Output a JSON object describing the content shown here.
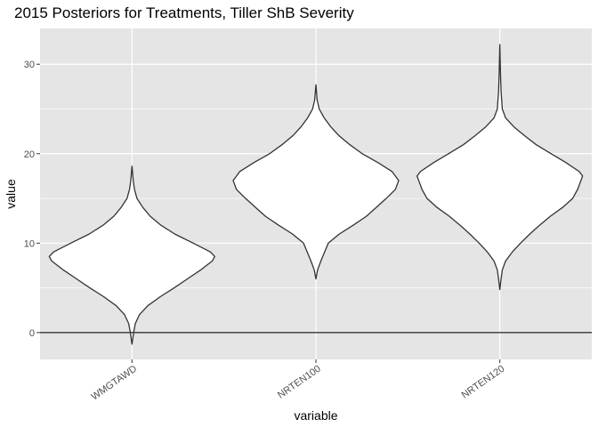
{
  "chart_data": {
    "type": "violin",
    "title": "2015 Posteriors for Treatments, Tiller ShB Severity",
    "xlabel": "variable",
    "ylabel": "value",
    "categories": [
      "WMGTAWD",
      "NRTEN100",
      "NRTEN120"
    ],
    "ylim": [
      -3,
      34
    ],
    "yticks": [
      0,
      10,
      20,
      30
    ],
    "reference_line": 0,
    "grid": true,
    "colors": {
      "panel_bg": "#e5e5e5",
      "grid": "#ffffff",
      "violin_fill": "#ffffff",
      "violin_stroke": "#333333",
      "reference_line": "#333333"
    },
    "series": [
      {
        "category": "WMGTAWD",
        "summary": {
          "min": -1.3,
          "max": 18.6,
          "mode": 8.5
        },
        "density": [
          [
            -1.3,
            0.0
          ],
          [
            0.0,
            0.02
          ],
          [
            1.0,
            0.04
          ],
          [
            2.0,
            0.09
          ],
          [
            3.0,
            0.19
          ],
          [
            4.0,
            0.34
          ],
          [
            5.0,
            0.51
          ],
          [
            6.0,
            0.67
          ],
          [
            7.0,
            0.83
          ],
          [
            8.0,
            0.97
          ],
          [
            8.5,
            1.0
          ],
          [
            9.0,
            0.95
          ],
          [
            10.0,
            0.74
          ],
          [
            11.0,
            0.52
          ],
          [
            12.0,
            0.35
          ],
          [
            13.0,
            0.22
          ],
          [
            14.0,
            0.13
          ],
          [
            15.0,
            0.06
          ],
          [
            16.0,
            0.03
          ],
          [
            17.0,
            0.015
          ],
          [
            18.6,
            0.0
          ]
        ]
      },
      {
        "category": "NRTEN100",
        "summary": {
          "min": 6.0,
          "max": 27.7,
          "mode": 17.0
        },
        "density": [
          [
            6.0,
            0.0
          ],
          [
            7.0,
            0.02
          ],
          [
            8.0,
            0.06
          ],
          [
            10.0,
            0.15
          ],
          [
            11.0,
            0.28
          ],
          [
            12.0,
            0.45
          ],
          [
            13.0,
            0.61
          ],
          [
            14.0,
            0.73
          ],
          [
            15.0,
            0.85
          ],
          [
            16.0,
            0.96
          ],
          [
            17.0,
            1.0
          ],
          [
            18.0,
            0.92
          ],
          [
            19.0,
            0.75
          ],
          [
            20.0,
            0.56
          ],
          [
            21.0,
            0.41
          ],
          [
            22.0,
            0.28
          ],
          [
            23.0,
            0.18
          ],
          [
            24.0,
            0.1
          ],
          [
            25.0,
            0.04
          ],
          [
            26.0,
            0.015
          ],
          [
            27.7,
            0.0
          ]
        ]
      },
      {
        "category": "NRTEN120",
        "summary": {
          "min": 4.8,
          "max": 32.2,
          "mode": 17.5
        },
        "density": [
          [
            4.8,
            0.0
          ],
          [
            6.0,
            0.015
          ],
          [
            7.0,
            0.03
          ],
          [
            8.0,
            0.07
          ],
          [
            9.0,
            0.15
          ],
          [
            10.0,
            0.25
          ],
          [
            11.0,
            0.36
          ],
          [
            12.0,
            0.48
          ],
          [
            13.0,
            0.61
          ],
          [
            14.0,
            0.76
          ],
          [
            15.0,
            0.88
          ],
          [
            16.0,
            0.94
          ],
          [
            17.0,
            0.98
          ],
          [
            17.5,
            1.0
          ],
          [
            18.0,
            0.96
          ],
          [
            19.0,
            0.8
          ],
          [
            20.0,
            0.62
          ],
          [
            21.0,
            0.44
          ],
          [
            22.0,
            0.3
          ],
          [
            23.0,
            0.17
          ],
          [
            24.0,
            0.07
          ],
          [
            25.0,
            0.03
          ],
          [
            27.0,
            0.015
          ],
          [
            29.0,
            0.008
          ],
          [
            32.2,
            0.0
          ]
        ]
      }
    ]
  }
}
